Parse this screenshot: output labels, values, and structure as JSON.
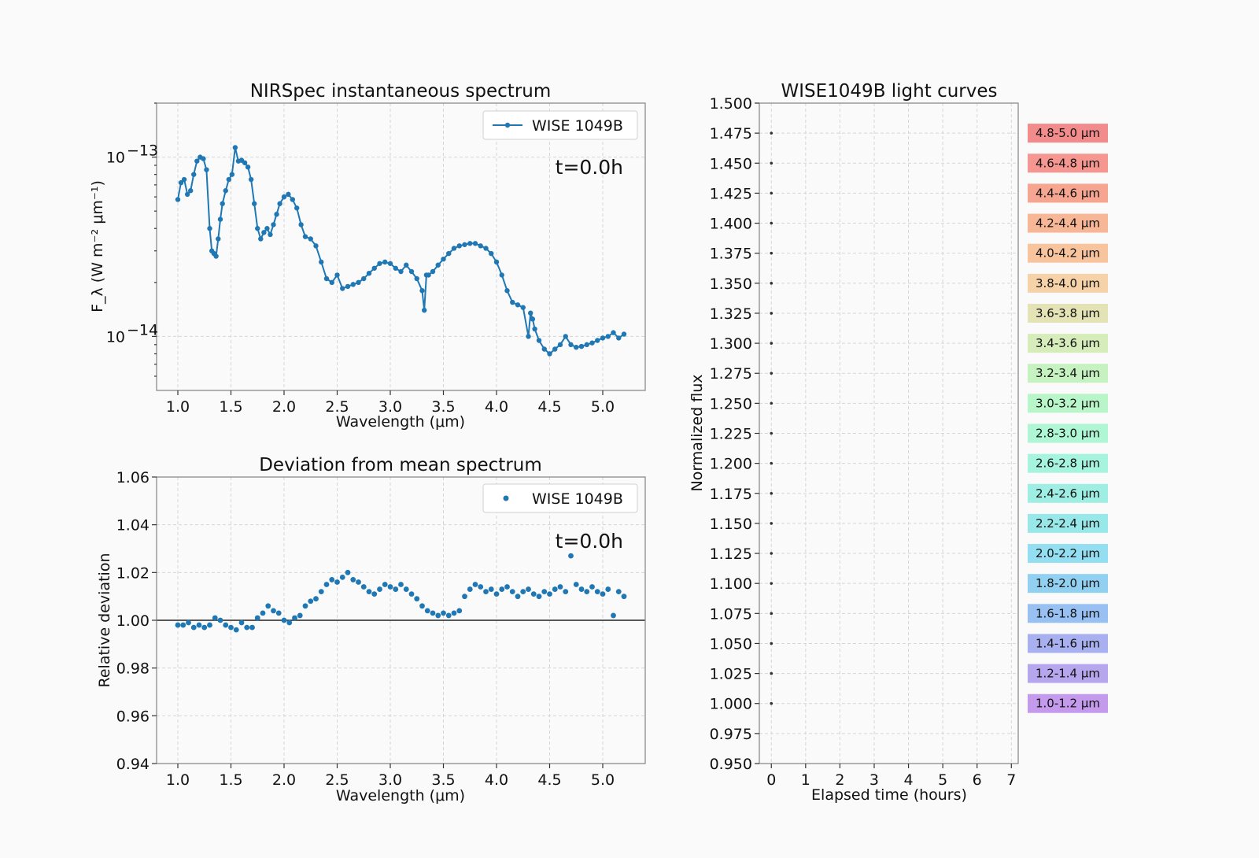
{
  "chart_data": [
    {
      "type": "line",
      "title": "NIRSpec instantaneous spectrum",
      "xlabel": "Wavelength (μm)",
      "ylabel": "F_λ (W m⁻² μm⁻¹)",
      "yscale": "log",
      "xlim": [
        0.8,
        5.4
      ],
      "ylim": [
        5e-15,
        2e-13
      ],
      "xticks": [
        "1.0",
        "1.5",
        "2.0",
        "2.5",
        "3.0",
        "3.5",
        "4.0",
        "4.5",
        "5.0"
      ],
      "yticks": [
        {
          "value": 1e-13,
          "label": "10",
          "exp": "−13"
        },
        {
          "value": 1e-14,
          "label": "10",
          "exp": "−14"
        }
      ],
      "annotation": "t=0.0h",
      "legend_position": "upper right",
      "grid": true,
      "color": "#1f77b4",
      "series": [
        {
          "name": "WISE 1049B",
          "x": [
            1.0,
            1.03,
            1.06,
            1.09,
            1.12,
            1.15,
            1.18,
            1.21,
            1.24,
            1.27,
            1.3,
            1.32,
            1.34,
            1.36,
            1.38,
            1.4,
            1.42,
            1.45,
            1.48,
            1.51,
            1.54,
            1.57,
            1.6,
            1.63,
            1.66,
            1.69,
            1.72,
            1.75,
            1.78,
            1.81,
            1.84,
            1.87,
            1.9,
            1.93,
            1.96,
            2.0,
            2.04,
            2.08,
            2.12,
            2.16,
            2.2,
            2.25,
            2.3,
            2.35,
            2.4,
            2.45,
            2.5,
            2.55,
            2.6,
            2.65,
            2.7,
            2.75,
            2.8,
            2.85,
            2.9,
            2.95,
            3.0,
            3.05,
            3.1,
            3.15,
            3.2,
            3.25,
            3.3,
            3.32,
            3.34,
            3.36,
            3.4,
            3.45,
            3.5,
            3.55,
            3.6,
            3.65,
            3.7,
            3.75,
            3.8,
            3.85,
            3.9,
            3.95,
            4.0,
            4.05,
            4.1,
            4.15,
            4.2,
            4.25,
            4.3,
            4.32,
            4.34,
            4.36,
            4.4,
            4.45,
            4.5,
            4.55,
            4.6,
            4.65,
            4.7,
            4.75,
            4.8,
            4.85,
            4.9,
            4.95,
            5.0,
            5.05,
            5.1,
            5.15,
            5.2
          ],
          "y": [
            5.8e-14,
            7.2e-14,
            7.5e-14,
            6.2e-14,
            6.5e-14,
            8e-14,
            9.5e-14,
            1e-13,
            9.8e-14,
            8.5e-14,
            4e-14,
            3e-14,
            2.9e-14,
            2.8e-14,
            3.5e-14,
            4.5e-14,
            5.5e-14,
            6.5e-14,
            7.5e-14,
            8e-14,
            1.13e-13,
            9.5e-14,
            9.6e-14,
            9.3e-14,
            8.8e-14,
            7.5e-14,
            5.5e-14,
            4e-14,
            3.5e-14,
            3.8e-14,
            4e-14,
            3.7e-14,
            4.2e-14,
            4.8e-14,
            5.5e-14,
            6e-14,
            6.2e-14,
            5.8e-14,
            5.2e-14,
            4.2e-14,
            3.6e-14,
            3.5e-14,
            3.2e-14,
            2.6e-14,
            2.1e-14,
            2e-14,
            2.2e-14,
            1.85e-14,
            1.9e-14,
            1.95e-14,
            2e-14,
            2.1e-14,
            2.25e-14,
            2.4e-14,
            2.55e-14,
            2.6e-14,
            2.55e-14,
            2.4e-14,
            2.3e-14,
            2.5e-14,
            2.3e-14,
            2.1e-14,
            1.8e-14,
            1.4e-14,
            2.2e-14,
            2.2e-14,
            2.3e-14,
            2.5e-14,
            2.7e-14,
            2.9e-14,
            3.1e-14,
            3.2e-14,
            3.25e-14,
            3.3e-14,
            3.3e-14,
            3.2e-14,
            3.1e-14,
            2.9e-14,
            2.6e-14,
            2.2e-14,
            1.8e-14,
            1.55e-14,
            1.5e-14,
            1.45e-14,
            1e-14,
            1.35e-14,
            1.25e-14,
            1.1e-14,
            9.5e-15,
            8.5e-15,
            8e-15,
            8.5e-15,
            9e-15,
            1e-14,
            9e-15,
            8.7e-15,
            8.8e-15,
            9e-15,
            9.2e-15,
            9.5e-15,
            9.8e-15,
            1e-14,
            1.05e-14,
            9.8e-15,
            1.03e-14
          ]
        }
      ]
    },
    {
      "type": "scatter",
      "title": "Deviation from mean spectrum",
      "xlabel": "Wavelength (μm)",
      "ylabel": "Relative deviation",
      "xlim": [
        0.8,
        5.4
      ],
      "ylim": [
        0.94,
        1.06
      ],
      "xticks": [
        "1.0",
        "1.5",
        "2.0",
        "2.5",
        "3.0",
        "3.5",
        "4.0",
        "4.5",
        "5.0"
      ],
      "yticks": [
        "0.94",
        "0.96",
        "0.98",
        "1.00",
        "1.02",
        "1.04",
        "1.06"
      ],
      "hline": 1.0,
      "annotation": "t=0.0h",
      "legend_position": "upper right",
      "grid": true,
      "color": "#1f77b4",
      "series": [
        {
          "name": "WISE 1049B",
          "x": [
            1.0,
            1.05,
            1.1,
            1.15,
            1.2,
            1.25,
            1.3,
            1.35,
            1.4,
            1.45,
            1.5,
            1.55,
            1.6,
            1.65,
            1.7,
            1.75,
            1.8,
            1.85,
            1.9,
            1.95,
            2.0,
            2.05,
            2.1,
            2.15,
            2.2,
            2.25,
            2.3,
            2.35,
            2.4,
            2.45,
            2.5,
            2.55,
            2.6,
            2.65,
            2.7,
            2.75,
            2.8,
            2.85,
            2.9,
            2.95,
            3.0,
            3.05,
            3.1,
            3.15,
            3.2,
            3.25,
            3.3,
            3.35,
            3.4,
            3.45,
            3.5,
            3.55,
            3.6,
            3.65,
            3.7,
            3.75,
            3.8,
            3.85,
            3.9,
            3.95,
            4.0,
            4.05,
            4.1,
            4.15,
            4.2,
            4.25,
            4.3,
            4.35,
            4.4,
            4.45,
            4.5,
            4.55,
            4.6,
            4.65,
            4.7,
            4.75,
            4.8,
            4.85,
            4.9,
            4.95,
            5.0,
            5.05,
            5.1,
            5.15,
            5.2
          ],
          "y": [
            0.998,
            0.998,
            0.999,
            0.997,
            0.998,
            0.997,
            0.998,
            1.001,
            1.0,
            0.998,
            0.997,
            0.996,
            0.999,
            0.997,
            0.997,
            1.001,
            1.003,
            1.006,
            1.004,
            1.003,
            1.0,
            0.999,
            1.001,
            1.002,
            1.006,
            1.008,
            1.009,
            1.012,
            1.015,
            1.017,
            1.016,
            1.018,
            1.02,
            1.017,
            1.016,
            1.014,
            1.012,
            1.011,
            1.013,
            1.015,
            1.014,
            1.013,
            1.015,
            1.013,
            1.011,
            1.009,
            1.006,
            1.004,
            1.003,
            1.002,
            1.003,
            1.002,
            1.003,
            1.004,
            1.01,
            1.013,
            1.015,
            1.014,
            1.012,
            1.013,
            1.011,
            1.013,
            1.014,
            1.012,
            1.01,
            1.012,
            1.013,
            1.011,
            1.01,
            1.012,
            1.011,
            1.013,
            1.014,
            1.012,
            1.027,
            1.015,
            1.013,
            1.012,
            1.014,
            1.012,
            1.011,
            1.013,
            1.002,
            1.012,
            1.01
          ]
        }
      ]
    },
    {
      "type": "line",
      "title": "WISE1049B light curves",
      "xlabel": "Elapsed time (hours)",
      "ylabel": "Normalized flux",
      "xlim": [
        -0.35,
        7.2
      ],
      "ylim": [
        0.95,
        1.5
      ],
      "xticks": [
        "0",
        "1",
        "2",
        "3",
        "4",
        "5",
        "6",
        "7"
      ],
      "yticks": [
        "0.950",
        "0.975",
        "1.000",
        "1.025",
        "1.050",
        "1.075",
        "1.100",
        "1.125",
        "1.150",
        "1.175",
        "1.200",
        "1.225",
        "1.250",
        "1.275",
        "1.300",
        "1.325",
        "1.350",
        "1.375",
        "1.400",
        "1.425",
        "1.450",
        "1.475",
        "1.500"
      ],
      "grid": true,
      "series": [
        {
          "name": "4.8-5.0 μm",
          "x": [
            0
          ],
          "y": [
            1.475
          ],
          "color": "#f28b8b"
        },
        {
          "name": "4.6-4.8 μm",
          "x": [
            0
          ],
          "y": [
            1.45
          ],
          "color": "#f59690"
        },
        {
          "name": "4.4-4.6 μm",
          "x": [
            0
          ],
          "y": [
            1.425
          ],
          "color": "#f6a690"
        },
        {
          "name": "4.2-4.4 μm",
          "x": [
            0
          ],
          "y": [
            1.4
          ],
          "color": "#f7b696"
        },
        {
          "name": "4.0-4.2 μm",
          "x": [
            0
          ],
          "y": [
            1.375
          ],
          "color": "#f7c49e"
        },
        {
          "name": "3.8-4.0 μm",
          "x": [
            0
          ],
          "y": [
            1.35
          ],
          "color": "#f6d2a8"
        },
        {
          "name": "3.6-3.8 μm",
          "x": [
            0
          ],
          "y": [
            1.325
          ],
          "color": "#e3e3b6"
        },
        {
          "name": "3.4-3.6 μm",
          "x": [
            0
          ],
          "y": [
            1.3
          ],
          "color": "#d6ecba"
        },
        {
          "name": "3.2-3.4 μm",
          "x": [
            0
          ],
          "y": [
            1.275
          ],
          "color": "#c5f2c0"
        },
        {
          "name": "3.0-3.2 μm",
          "x": [
            0
          ],
          "y": [
            1.25
          ],
          "color": "#b8f5c8"
        },
        {
          "name": "2.8-3.0 μm",
          "x": [
            0
          ],
          "y": [
            1.225
          ],
          "color": "#aef6d4"
        },
        {
          "name": "2.6-2.8 μm",
          "x": [
            0
          ],
          "y": [
            1.2
          ],
          "color": "#a6f4de"
        },
        {
          "name": "2.4-2.6 μm",
          "x": [
            0
          ],
          "y": [
            1.175
          ],
          "color": "#9eeee4"
        },
        {
          "name": "2.2-2.4 μm",
          "x": [
            0
          ],
          "y": [
            1.15
          ],
          "color": "#98e8ea"
        },
        {
          "name": "2.0-2.2 μm",
          "x": [
            0
          ],
          "y": [
            1.125
          ],
          "color": "#93def0"
        },
        {
          "name": "1.8-2.0 μm",
          "x": [
            0
          ],
          "y": [
            1.1
          ],
          "color": "#92d0f2"
        },
        {
          "name": "1.6-1.8 μm",
          "x": [
            0
          ],
          "y": [
            1.075
          ],
          "color": "#98c0f2"
        },
        {
          "name": "1.4-1.6 μm",
          "x": [
            0
          ],
          "y": [
            1.05
          ],
          "color": "#a8b0f0"
        },
        {
          "name": "1.2-1.4 μm",
          "x": [
            0
          ],
          "y": [
            1.025
          ],
          "color": "#b6a6ee"
        },
        {
          "name": "1.0-1.2 μm",
          "x": [
            0
          ],
          "y": [
            1.0
          ],
          "color": "#c49aec"
        }
      ]
    }
  ]
}
